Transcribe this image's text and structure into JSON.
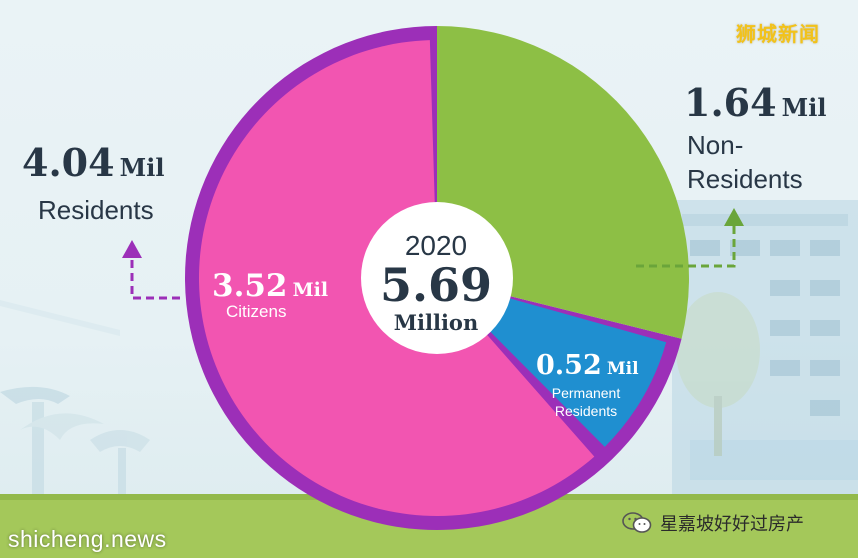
{
  "watermark_top": "狮城新闻",
  "watermark_bottom": "shicheng.news",
  "wechat_account": "星嘉坡好好过房产",
  "center": {
    "year": "2020",
    "total": "5.69",
    "unit": "Million"
  },
  "residents": {
    "value": "4.04",
    "unit": "Mil",
    "label": "Residents"
  },
  "non_residents": {
    "value": "1.64",
    "unit": "Mil",
    "label_line1": "Non-",
    "label_line2": "Residents"
  },
  "citizens": {
    "value": "3.52",
    "unit": "Mil",
    "label": "Citizens"
  },
  "permanent_residents": {
    "value": "0.52",
    "unit": "Mil",
    "label_line1": "Permanent",
    "label_line2": "Residents"
  },
  "chart_data": {
    "type": "pie",
    "title": "2020 5.69 Million",
    "total": 5.69,
    "unit": "Mil",
    "slices": [
      {
        "name": "Non-Residents",
        "value": 1.64,
        "color": "#8dbf45"
      },
      {
        "name": "Permanent Residents",
        "value": 0.52,
        "color": "#1f8fd0"
      },
      {
        "name": "Citizens",
        "value": 3.52,
        "color": "#f255b1"
      }
    ],
    "groups": [
      {
        "name": "Residents",
        "value": 4.04,
        "members": [
          "Citizens",
          "Permanent Residents"
        ],
        "color": "#9c2fb8"
      },
      {
        "name": "Non-Residents",
        "value": 1.64,
        "members": [
          "Non-Residents"
        ]
      }
    ]
  },
  "colors": {
    "non_residents": "#8dbf45",
    "permanent_residents": "#1f8fd0",
    "citizens": "#f255b1",
    "residents_ring": "#9c2fb8",
    "text_dark": "#283746",
    "arrow_green": "#6aa53a",
    "arrow_purple": "#9c2fb8"
  },
  "icons": {
    "wechat": "wechat-icon"
  }
}
